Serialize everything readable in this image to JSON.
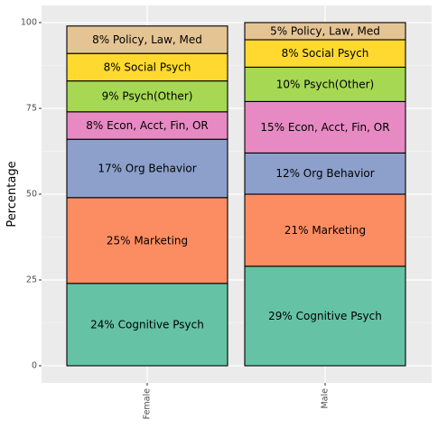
{
  "chart_data": {
    "type": "bar",
    "stacked": true,
    "ylabel": "Percentage",
    "xlabel": "",
    "ylim": [
      0,
      100
    ],
    "yticks": [
      0,
      25,
      50,
      75,
      100
    ],
    "grid": true,
    "categories": [
      "Female",
      "Male"
    ],
    "series": [
      {
        "key": "cognitive",
        "color": "#66c2a5",
        "values": [
          24,
          29
        ],
        "labels": [
          "24% Cognitive Psych",
          "29% Cognitive Psych"
        ]
      },
      {
        "key": "marketing",
        "color": "#fc8d62",
        "values": [
          25,
          21
        ],
        "labels": [
          "25% Marketing",
          "21% Marketing"
        ]
      },
      {
        "key": "org",
        "color": "#8da0cb",
        "values": [
          17,
          12
        ],
        "labels": [
          "17% Org Behavior",
          "12% Org Behavior"
        ]
      },
      {
        "key": "econ",
        "color": "#e78ac3",
        "values": [
          8,
          15
        ],
        "labels": [
          "8% Econ, Acct, Fin, OR",
          "15% Econ, Acct, Fin, OR"
        ]
      },
      {
        "key": "psych-other",
        "color": "#a6d854",
        "values": [
          9,
          10
        ],
        "labels": [
          "9% Psych(Other)",
          "10% Psych(Other)"
        ]
      },
      {
        "key": "social",
        "color": "#ffd92f",
        "values": [
          8,
          8
        ],
        "labels": [
          "8% Social Psych",
          "8% Social Psych"
        ]
      },
      {
        "key": "policy",
        "color": "#e5c494",
        "values": [
          8,
          5
        ],
        "labels": [
          "8% Policy, Law, Med",
          "5% Policy, Law, Med"
        ]
      }
    ]
  },
  "colors": {
    "panel_background": "#ebebeb",
    "major_grid": "#ffffff",
    "minor_grid": "#f5f5f5",
    "bar_outline": "#000000"
  }
}
